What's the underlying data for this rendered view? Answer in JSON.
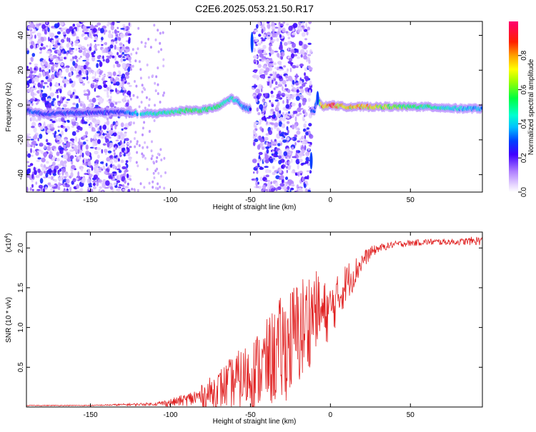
{
  "title": "C2E6.2025.053.21.50.R17",
  "colors": {
    "line": "#e02020",
    "axis": "#000000"
  },
  "chart_data": [
    {
      "type": "heatmap",
      "xlabel": "Height of straight line (km)",
      "ylabel": "Frequency (Hz)",
      "xlim": [
        -190,
        95
      ],
      "ylim": [
        -50,
        48
      ],
      "xticks": [
        -150,
        -100,
        -50,
        0,
        50
      ],
      "yticks": [
        -40,
        -20,
        0,
        20,
        40
      ],
      "colorbar": {
        "label": "Normalized spectral amplitude",
        "range": [
          0,
          1
        ],
        "ticks": [
          0.0,
          0.2,
          0.4,
          0.6,
          0.8
        ],
        "tick_labels": [
          "0.0",
          "0.2",
          "0.4",
          "0.6",
          "0.8"
        ]
      },
      "ridge": {
        "x": [
          -190,
          -185,
          -180,
          -130,
          -120,
          -110,
          -100,
          -90,
          -80,
          -70,
          -62,
          -58,
          -55,
          -52,
          -50,
          -10,
          -8,
          -5,
          0,
          10,
          20,
          40,
          60,
          80,
          93
        ],
        "y": [
          -3,
          -4,
          -5,
          -4,
          -5,
          -5,
          -4,
          -3,
          -3,
          -1,
          4,
          2,
          -1,
          -2,
          -2,
          -3,
          3,
          -1,
          0,
          -1,
          -1,
          -1,
          -1,
          -2,
          -2
        ],
        "amplitude": [
          0.3,
          0.35,
          0.3,
          0.3,
          0.45,
          0.5,
          0.55,
          0.6,
          0.6,
          0.55,
          0.5,
          0.45,
          0.4,
          0.4,
          0.3,
          0.35,
          0.45,
          0.85,
          0.95,
          0.75,
          0.85,
          0.65,
          0.55,
          0.45,
          0.4
        ]
      },
      "noise_regions": [
        [
          -190,
          -125
        ],
        [
          -48,
          -12
        ]
      ]
    },
    {
      "type": "line",
      "xlabel": "Height of straight line (km)",
      "ylabel": "SNR (10 * v/v)",
      "yscale_label": "(x10",
      "yscale_exp": "4",
      "yscale_close": ")",
      "xlim": [
        -190,
        95
      ],
      "ylim": [
        0,
        2.2
      ],
      "xticks": [
        -150,
        -100,
        -50,
        0,
        50
      ],
      "yticks": [
        0.5,
        1.0,
        1.5,
        2.0
      ],
      "ytick_labels": [
        "0.5",
        "1.0",
        "1.5",
        "2.0"
      ],
      "series": [
        {
          "x": [
            -190,
            -150,
            -110,
            -100,
            -90,
            -80,
            -70,
            -60,
            -50,
            -40,
            -30,
            -20,
            -15,
            -10,
            -5,
            0,
            5,
            10,
            15,
            20,
            25,
            30,
            40,
            60,
            80,
            93
          ],
          "y": [
            0.02,
            0.02,
            0.04,
            0.06,
            0.1,
            0.15,
            0.25,
            0.35,
            0.45,
            0.6,
            0.8,
            1.0,
            1.1,
            1.3,
            1.2,
            1.25,
            1.4,
            1.6,
            1.7,
            1.85,
            1.95,
            2.0,
            2.05,
            2.08,
            2.08,
            2.1
          ],
          "spread": [
            0.005,
            0.005,
            0.02,
            0.05,
            0.08,
            0.15,
            0.25,
            0.35,
            0.45,
            0.55,
            0.7,
            0.7,
            0.7,
            0.5,
            0.45,
            0.35,
            0.3,
            0.25,
            0.2,
            0.12,
            0.08,
            0.05,
            0.04,
            0.04,
            0.04,
            0.06
          ]
        }
      ]
    }
  ]
}
